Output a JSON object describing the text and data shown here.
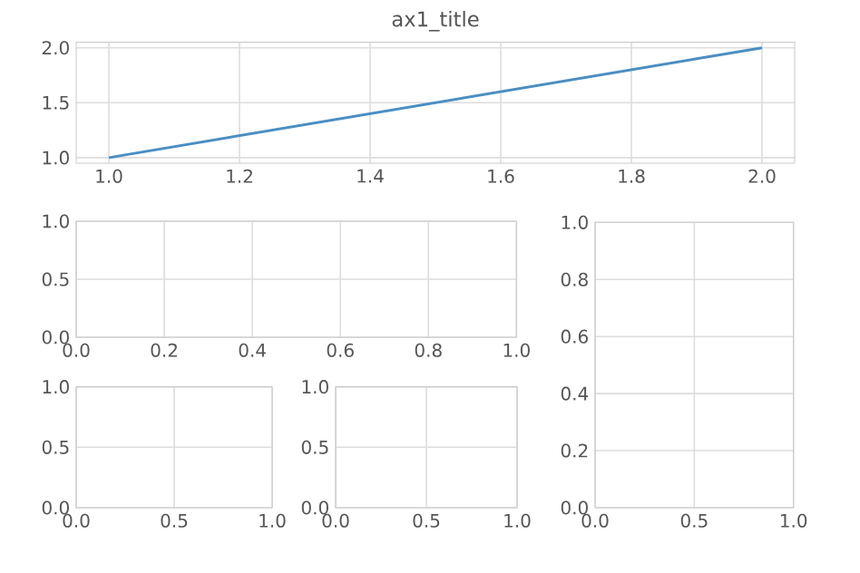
{
  "chart_data": [
    {
      "type": "line",
      "title": "ax1_title",
      "grid": true,
      "marker": "none",
      "line_style": "solid",
      "xlim": [
        0.95,
        2.05
      ],
      "ylim": [
        0.95,
        2.05
      ],
      "xticks": [
        {
          "value": 1,
          "label": "1.0"
        },
        1.2,
        1.4,
        1.6,
        1.8,
        {
          "value": 2,
          "label": "2.0"
        }
      ],
      "yticks": [
        {
          "value": 1,
          "label": "1.0"
        },
        1.5,
        {
          "value": 2,
          "label": "2.0"
        }
      ],
      "series": [
        {
          "color": "#4a8ec2",
          "x": [
            1,
            2
          ],
          "values": [
            1,
            2
          ]
        }
      ]
    },
    {
      "type": "line",
      "grid": true,
      "xlim": [
        0,
        1
      ],
      "ylim": [
        0,
        1
      ],
      "xticks": [
        {
          "value": 0,
          "label": "0.0"
        },
        0.2,
        0.4,
        0.6,
        0.8,
        {
          "value": 1,
          "label": "1.0"
        }
      ],
      "yticks": [
        {
          "value": 0,
          "label": "0.0"
        },
        0.5,
        {
          "value": 1,
          "label": "1.0"
        }
      ]
    },
    {
      "type": "line",
      "grid": true,
      "xlim": [
        0,
        1
      ],
      "ylim": [
        0,
        1
      ],
      "xticks": [
        {
          "value": 0,
          "label": "0.0"
        },
        0.5,
        {
          "value": 1,
          "label": "1.0"
        }
      ],
      "yticks": [
        {
          "value": 0,
          "label": "0.0"
        },
        0.2,
        0.4,
        0.6,
        0.8,
        {
          "value": 1,
          "label": "1.0"
        }
      ]
    },
    {
      "type": "line",
      "grid": true,
      "xlim": [
        0,
        1
      ],
      "ylim": [
        0,
        1
      ],
      "xticks": [
        {
          "value": 0,
          "label": "0.0"
        },
        0.5,
        {
          "value": 1,
          "label": "1.0"
        }
      ],
      "yticks": [
        {
          "value": 0,
          "label": "0.0"
        },
        0.5,
        {
          "value": 1,
          "label": "1.0"
        }
      ]
    },
    {
      "type": "line",
      "grid": true,
      "xlim": [
        0,
        1
      ],
      "ylim": [
        0,
        1
      ],
      "xticks": [
        {
          "value": 0,
          "label": "0.0"
        },
        0.5,
        {
          "value": 1,
          "label": "1.0"
        }
      ],
      "yticks": [
        {
          "value": 0,
          "label": "0.0"
        },
        0.5,
        {
          "value": 1,
          "label": "1.0"
        }
      ]
    }
  ]
}
